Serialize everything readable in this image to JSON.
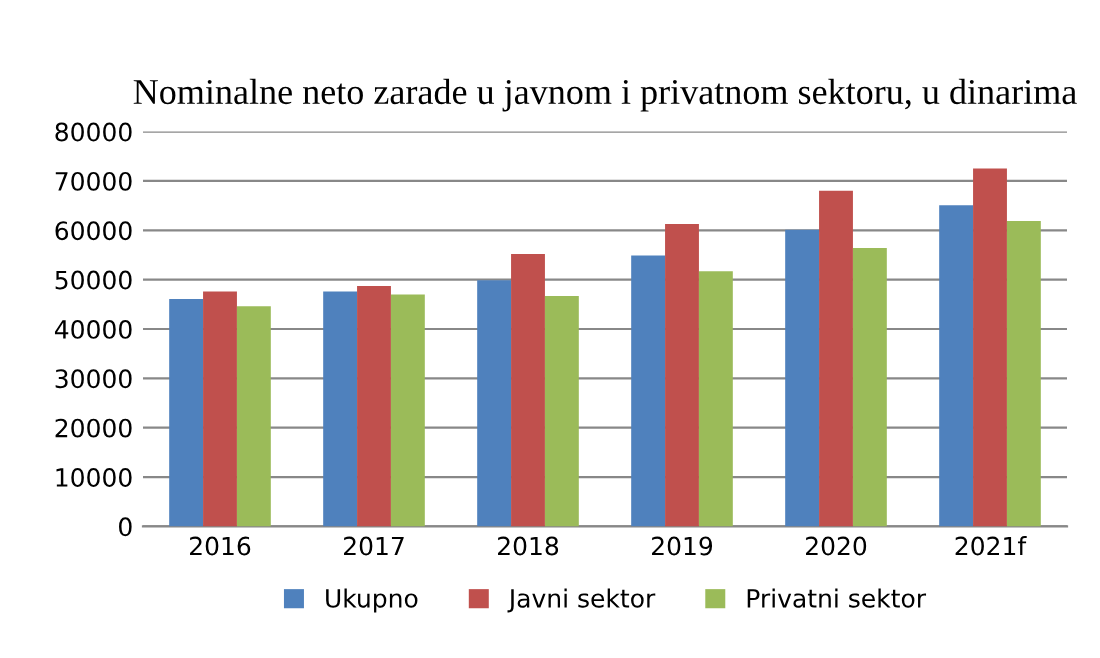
{
  "chart_data": {
    "type": "bar",
    "title": "Nominalne neto zarade u javnom i privatnom sektoru, u dinarima",
    "categories": [
      "2016",
      "2017",
      "2018",
      "2019",
      "2020",
      "2021f"
    ],
    "series": [
      {
        "name": "Ukupno",
        "color": "#4f81bd",
        "values": [
          46100,
          47600,
          49900,
          54900,
          60100,
          65100
        ]
      },
      {
        "name": "Javni sektor",
        "color": "#c0504d",
        "values": [
          47600,
          48700,
          55200,
          61300,
          68000,
          72500
        ]
      },
      {
        "name": "Privatni sektor",
        "color": "#9bbb59",
        "values": [
          44600,
          47000,
          46700,
          51700,
          56400,
          61900
        ]
      }
    ],
    "ylim": [
      0,
      80000
    ],
    "yticks": [
      0,
      10000,
      20000,
      30000,
      40000,
      50000,
      60000,
      70000,
      80000
    ],
    "grid": "y",
    "legend": "bottom"
  }
}
